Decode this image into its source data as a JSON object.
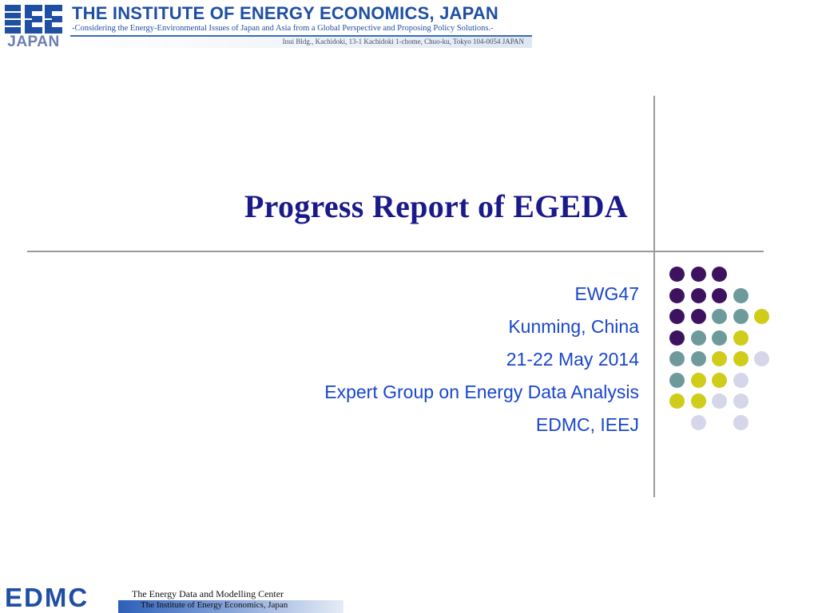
{
  "header": {
    "logo_letters": "IEE",
    "logo_sub": "JAPAN",
    "title": "THE INSTITUTE OF ENERGY ECONOMICS, JAPAN",
    "subtitle": "-Considering the Energy-Environmental Issues of Japan and Asia from a Global Perspective and Proposing Policy Solutions.-",
    "address": "Inui Bldg., Kachidoki, 13-1 Kachidoki 1-chome, Chuo-ku, Tokyo 104-0054 JAPAN"
  },
  "slide": {
    "title": "Progress Report of EGEDA",
    "lines": [
      "EWG47",
      "Kunming, China",
      "21-22 May 2014",
      "Expert Group on Energy Data Analysis",
      "EDMC, IEEJ"
    ]
  },
  "decoration": {
    "colors": {
      "purple": "#3d1360",
      "teal": "#6f9a9c",
      "yellow": "#cfcc1a",
      "lavender": "#d5d6ea"
    },
    "dot_rows": [
      [
        "purple",
        "purple",
        "purple",
        null,
        null
      ],
      [
        "purple",
        "purple",
        "purple",
        "teal",
        null
      ],
      [
        "purple",
        "purple",
        "teal",
        "teal",
        "yellow"
      ],
      [
        "purple",
        "teal",
        "teal",
        "yellow",
        null
      ],
      [
        "teal",
        "teal",
        "yellow",
        "yellow",
        "lavender"
      ],
      [
        "teal",
        "yellow",
        "yellow",
        "lavender",
        null
      ],
      [
        "yellow",
        "yellow",
        "lavender",
        "lavender",
        null
      ],
      [
        null,
        "lavender",
        null,
        "lavender",
        null
      ]
    ]
  },
  "footer": {
    "logo": "EDMC",
    "line1": "The Energy Data and Modelling Center",
    "line2": "The Institute of Energy Economics, Japan"
  }
}
